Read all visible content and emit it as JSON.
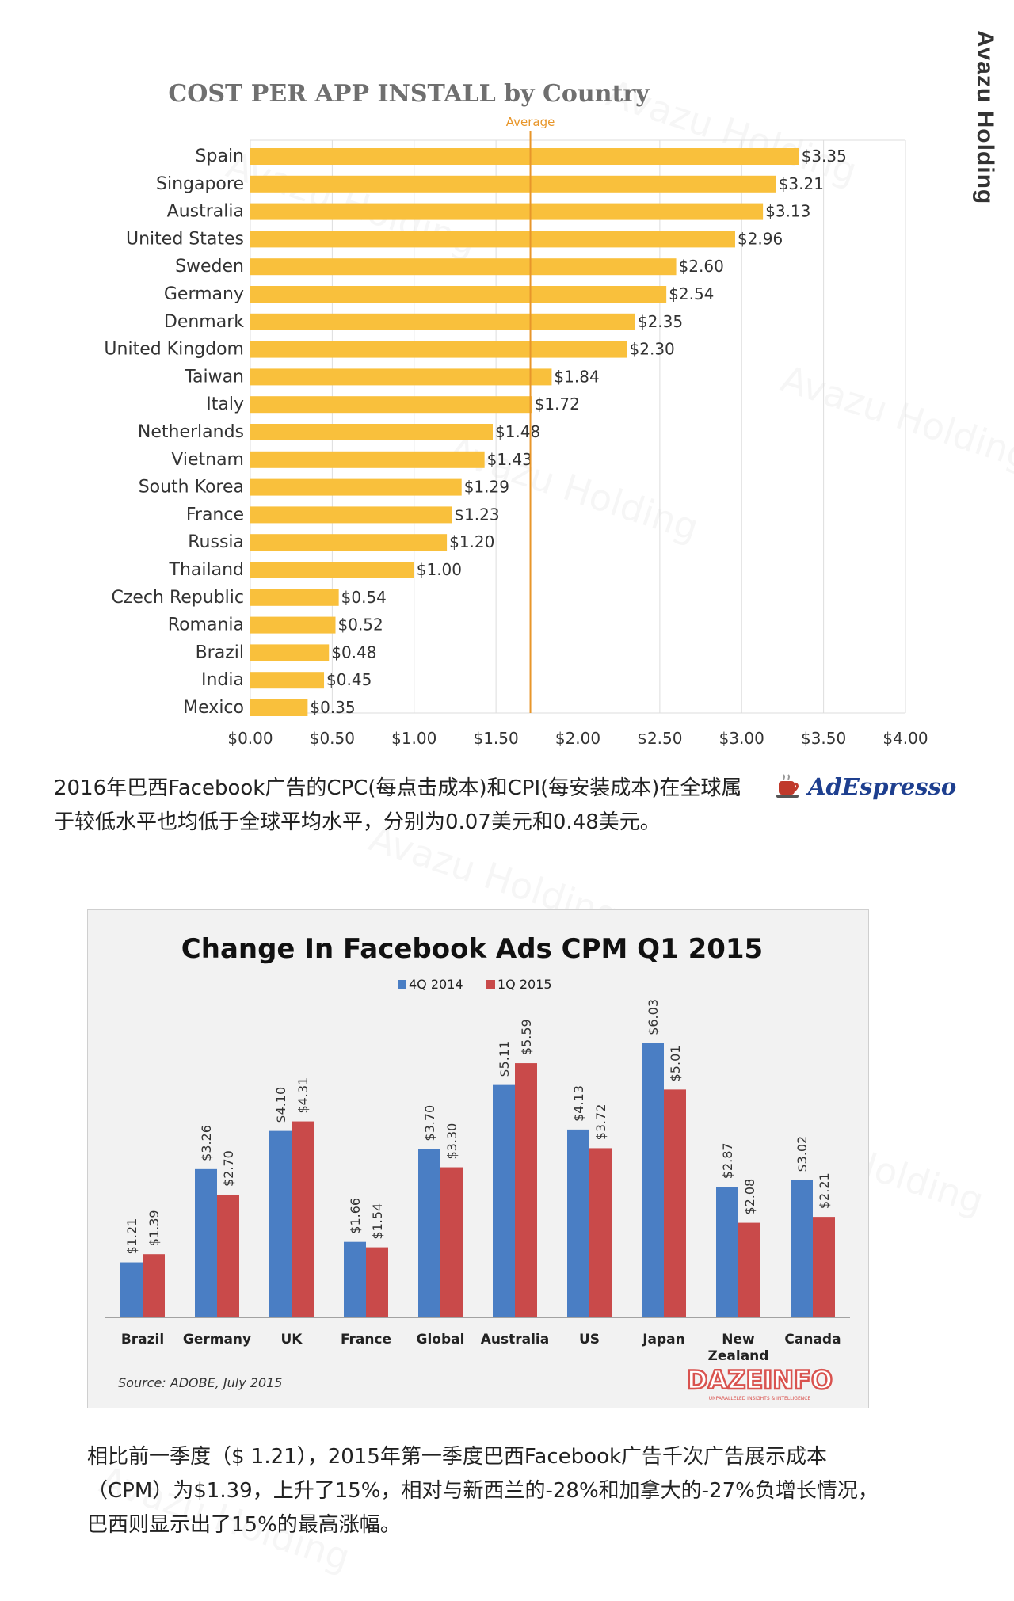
{
  "brand": "Avazu Holding",
  "watermark": "Avazu Holding",
  "chart_data": [
    {
      "type": "bar",
      "orientation": "horizontal",
      "title": "COST PER APP INSTALL by Country",
      "average_label": "Average",
      "average_value": 1.71,
      "categories": [
        "Spain",
        "Singapore",
        "Australia",
        "United States",
        "Sweden",
        "Germany",
        "Denmark",
        "United Kingdom",
        "Taiwan",
        "Italy",
        "Netherlands",
        "Vietnam",
        "South Korea",
        "France",
        "Russia",
        "Thailand",
        "Czech Republic",
        "Romania",
        "Brazil",
        "India",
        "Mexico"
      ],
      "values": [
        3.35,
        3.21,
        3.13,
        2.96,
        2.6,
        2.54,
        2.35,
        2.3,
        1.84,
        1.72,
        1.48,
        1.43,
        1.29,
        1.23,
        1.2,
        1.0,
        0.54,
        0.52,
        0.48,
        0.45,
        0.35
      ],
      "value_labels": [
        "$3.35",
        "$3.21",
        "$3.13",
        "$2.96",
        "$2.60",
        "$2.54",
        "$2.35",
        "$2.30",
        "$1.84",
        "$1.72",
        "$1.48",
        "$1.43",
        "$1.29",
        "$1.23",
        "$1.20",
        "$1.00",
        "$0.54",
        "$0.52",
        "$0.48",
        "$0.45",
        "$0.35"
      ],
      "xlim": [
        0,
        4
      ],
      "xticks": [
        0,
        0.5,
        1,
        1.5,
        2,
        2.5,
        3,
        3.5,
        4
      ],
      "xtick_labels": [
        "$0.00",
        "$0.50",
        "$1.00",
        "$1.50",
        "$2.00",
        "$2.50",
        "$3.00",
        "$3.50",
        "$4.00"
      ],
      "grid": true,
      "colors": {
        "bar": "#f9c03c",
        "average": "#e8962a",
        "grid": "#dddddd"
      }
    },
    {
      "type": "bar",
      "title": "Change In Facebook Ads CPM Q1 2015",
      "categories": [
        "Brazil",
        "Germany",
        "UK",
        "France",
        "Global",
        "Australia",
        "US",
        "Japan",
        "New Zealand",
        "Canada"
      ],
      "category_lines": [
        [
          "Brazil"
        ],
        [
          "Germany"
        ],
        [
          "UK"
        ],
        [
          "France"
        ],
        [
          "Global"
        ],
        [
          "Australia"
        ],
        [
          "US"
        ],
        [
          "Japan"
        ],
        [
          "New",
          "Zealand"
        ],
        [
          "Canada"
        ]
      ],
      "series": [
        {
          "name": "4Q 2014",
          "color": "#4a7ec4",
          "values": [
            1.21,
            3.26,
            4.1,
            1.66,
            3.7,
            5.11,
            4.13,
            6.03,
            2.87,
            3.02
          ],
          "labels": [
            "$1.21",
            "$3.26",
            "$4.10",
            "$1.66",
            "$3.70",
            "$5.11",
            "$4.13",
            "$6.03",
            "$2.87",
            "$3.02"
          ]
        },
        {
          "name": "1Q 2015",
          "color": "#c94a4a",
          "values": [
            1.39,
            2.7,
            4.31,
            1.54,
            3.3,
            5.59,
            3.72,
            5.01,
            2.08,
            2.21
          ],
          "labels": [
            "$1.39",
            "$2.70",
            "$4.31",
            "$1.54",
            "$3.30",
            "$5.59",
            "$3.72",
            "$5.01",
            "$2.08",
            "$2.21"
          ]
        }
      ],
      "ylim": [
        0,
        7
      ],
      "source": "Source: ADOBE, July 2015"
    }
  ],
  "caption1": "2016年巴西Facebook广告的CPC(每点击成本)和CPI(每安装成本)在全球属于较低水平也均低于全球平均水平，分别为0.07美元和0.48美元。",
  "caption2": "相比前一季度（$ 1.21），2015年第一季度巴西Facebook广告千次广告展示成本（CPM）为$1.39，上升了15%，相对与新西兰的-28%和加拿大的-27%负增长情况，巴西则显示出了15%的最高涨幅。",
  "logo_adespresso": "AdEspresso",
  "logo_dazeinfo": {
    "text": "DAZEINFO",
    "tagline": "UNPARALLELED INSIGHTS & INTELLIGENCE"
  }
}
